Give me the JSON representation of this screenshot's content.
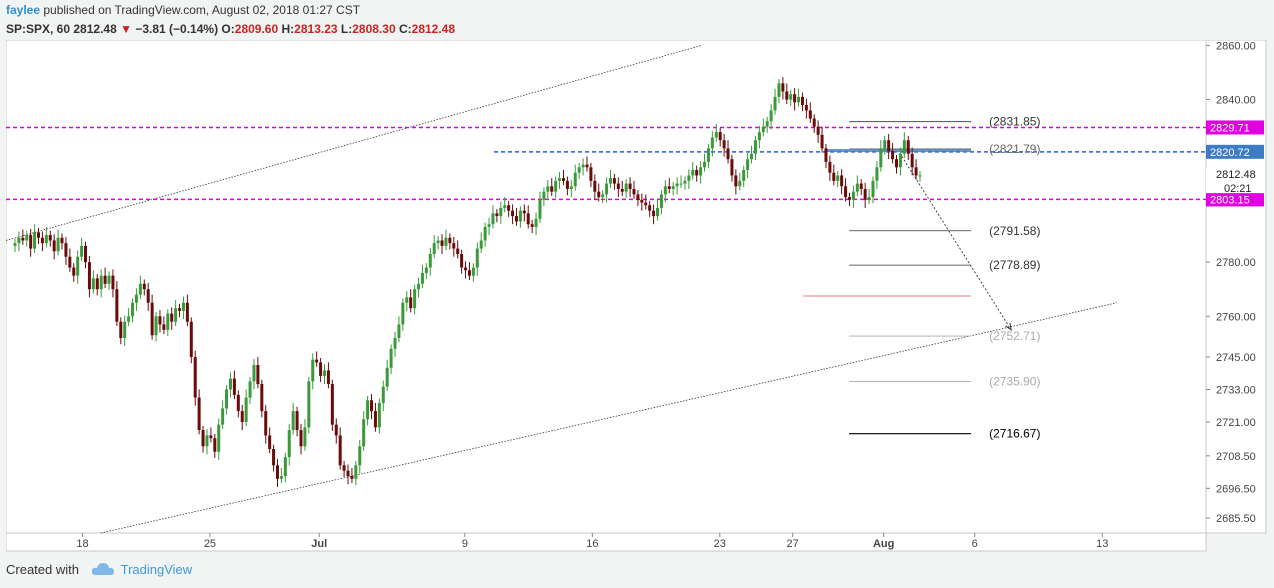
{
  "header": {
    "user": "faylee",
    "published_text": " published on TradingView.com, August 02, 2018 01:27 CST"
  },
  "ohlc": {
    "symbol": "SP:SPX, 60",
    "last": "2812.48",
    "change": "−3.81 (−0.14%)",
    "o_label": "O:",
    "o": "2809.60",
    "h_label": "H:",
    "h": "2813.23",
    "l_label": "L:",
    "l": "2808.30",
    "c_label": "C:",
    "c": "2812.48"
  },
  "footer": {
    "created_with": "Created with",
    "brand": "TradingView"
  },
  "colors": {
    "up": "#3a9a3a",
    "down": "#6b0a0a",
    "magenta": "#e000e0",
    "blue": "#2060e0",
    "axis_tag_magenta": "#e000e0",
    "axis_tag_blue": "#3d7bc6"
  },
  "chart_data": {
    "type": "candlestick",
    "yticks": [
      2685.5,
      2696.5,
      2708.5,
      2721.0,
      2733.0,
      2745.0,
      2760.0,
      2780.0,
      2840.0,
      2860.0
    ],
    "ytick_labels": [
      "2685.50",
      "2696.50",
      "2708.50",
      "2721.00",
      "2733.00",
      "2745.00",
      "2760.00",
      "2780.00",
      "2840.00",
      "2860.00"
    ],
    "ylim": [
      2680,
      2862
    ],
    "xticks": [
      {
        "label": "18",
        "x": 18
      },
      {
        "label": "25",
        "x": 25
      },
      {
        "label": "Jul",
        "x": 31
      },
      {
        "label": "9",
        "x": 39
      },
      {
        "label": "16",
        "x": 46
      },
      {
        "label": "23",
        "x": 53
      },
      {
        "label": "27",
        "x": 57
      },
      {
        "label": "Aug",
        "x": 62
      },
      {
        "label": "6",
        "x": 67
      },
      {
        "label": "13",
        "x": 74
      }
    ],
    "xlim": [
      13.8,
      79.7
    ],
    "last_price": {
      "value": 2812.48,
      "label": "2812.48",
      "countdown": "02:21"
    },
    "horizontal_levels": [
      {
        "value": 2829.71,
        "label": "2829.71",
        "style": "magenta"
      },
      {
        "value": 2820.72,
        "label": "2820.72",
        "style": "blue"
      },
      {
        "value": 2803.15,
        "label": "2803.15",
        "style": "magenta"
      }
    ],
    "fib_levels": [
      {
        "value": 2831.85,
        "label": "(2831.85)",
        "color": "#333333"
      },
      {
        "value": 2821.79,
        "label": "(2821.79)",
        "color": "#666666"
      },
      {
        "value": 2791.58,
        "label": "(2791.58)",
        "color": "#333333"
      },
      {
        "value": 2778.89,
        "label": "(2778.89)",
        "color": "#333333"
      },
      {
        "value": 2767.5,
        "label": "",
        "color": "#e05050"
      },
      {
        "value": 2752.71,
        "label": "(2752.71)",
        "color": "#aaaaaa"
      },
      {
        "value": 2735.9,
        "label": "(2735.90)",
        "color": "#aaaaaa"
      },
      {
        "value": 2716.67,
        "label": "(2716.67)",
        "color": "#000000"
      }
    ],
    "fib_x_range": [
      60.1,
      66.8
    ],
    "channel_upper": [
      [
        13.8,
        2788
      ],
      [
        52.0,
        2860
      ]
    ],
    "channel_lower": [
      [
        19.0,
        2680
      ],
      [
        74.8,
        2765
      ]
    ],
    "projection_arrow": [
      [
        63.0,
        2819
      ],
      [
        69.0,
        2755
      ]
    ],
    "closes": [
      2787,
      2789,
      2788,
      2790,
      2785,
      2791,
      2789,
      2787,
      2790,
      2788,
      2784,
      2789,
      2787,
      2782,
      2778,
      2775,
      2782,
      2786,
      2780,
      2770,
      2774,
      2770,
      2775,
      2772,
      2775,
      2770,
      2758,
      2752,
      2758,
      2760,
      2765,
      2768,
      2772,
      2770,
      2765,
      2753,
      2760,
      2757,
      2755,
      2761,
      2758,
      2763,
      2762,
      2765,
      2758,
      2745,
      2730,
      2718,
      2712,
      2716,
      2715,
      2710,
      2720,
      2726,
      2733,
      2737,
      2731,
      2725,
      2721,
      2730,
      2736,
      2742,
      2735,
      2725,
      2716,
      2711,
      2705,
      2700,
      2701,
      2708,
      2718,
      2725,
      2718,
      2712,
      2719,
      2736,
      2744,
      2743,
      2738,
      2740,
      2735,
      2720,
      2716,
      2705,
      2703,
      2701,
      2700,
      2705,
      2712,
      2722,
      2729,
      2725,
      2719,
      2728,
      2734,
      2741,
      2748,
      2752,
      2757,
      2765,
      2767,
      2763,
      2770,
      2772,
      2776,
      2778,
      2783,
      2787,
      2788,
      2786,
      2789,
      2787,
      2785,
      2783,
      2778,
      2777,
      2775,
      2778,
      2785,
      2788,
      2793,
      2794,
      2798,
      2797,
      2800,
      2801,
      2799,
      2797,
      2795,
      2799,
      2798,
      2794,
      2793,
      2796,
      2803,
      2806,
      2808,
      2806,
      2810,
      2811,
      2810,
      2807,
      2808,
      2813,
      2815,
      2816,
      2815,
      2810,
      2806,
      2804,
      2805,
      2809,
      2811,
      2809,
      2807,
      2806,
      2809,
      2807,
      2805,
      2803,
      2802,
      2801,
      2799,
      2797,
      2800,
      2805,
      2808,
      2807,
      2808,
      2809,
      2809,
      2810,
      2812,
      2814,
      2812,
      2815,
      2817,
      2822,
      2826,
      2828,
      2825,
      2822,
      2818,
      2812,
      2808,
      2810,
      2814,
      2818,
      2820,
      2825,
      2828,
      2830,
      2832,
      2836,
      2841,
      2846,
      2843,
      2840,
      2842,
      2839,
      2841,
      2838,
      2836,
      2833,
      2830,
      2827,
      2822,
      2817,
      2813,
      2810,
      2812,
      2808,
      2804,
      2803,
      2806,
      2809,
      2807,
      2803,
      2804,
      2810,
      2815,
      2822,
      2825,
      2821,
      2818,
      2815,
      2820,
      2825,
      2820,
      2815,
      2812,
      2812
    ]
  }
}
